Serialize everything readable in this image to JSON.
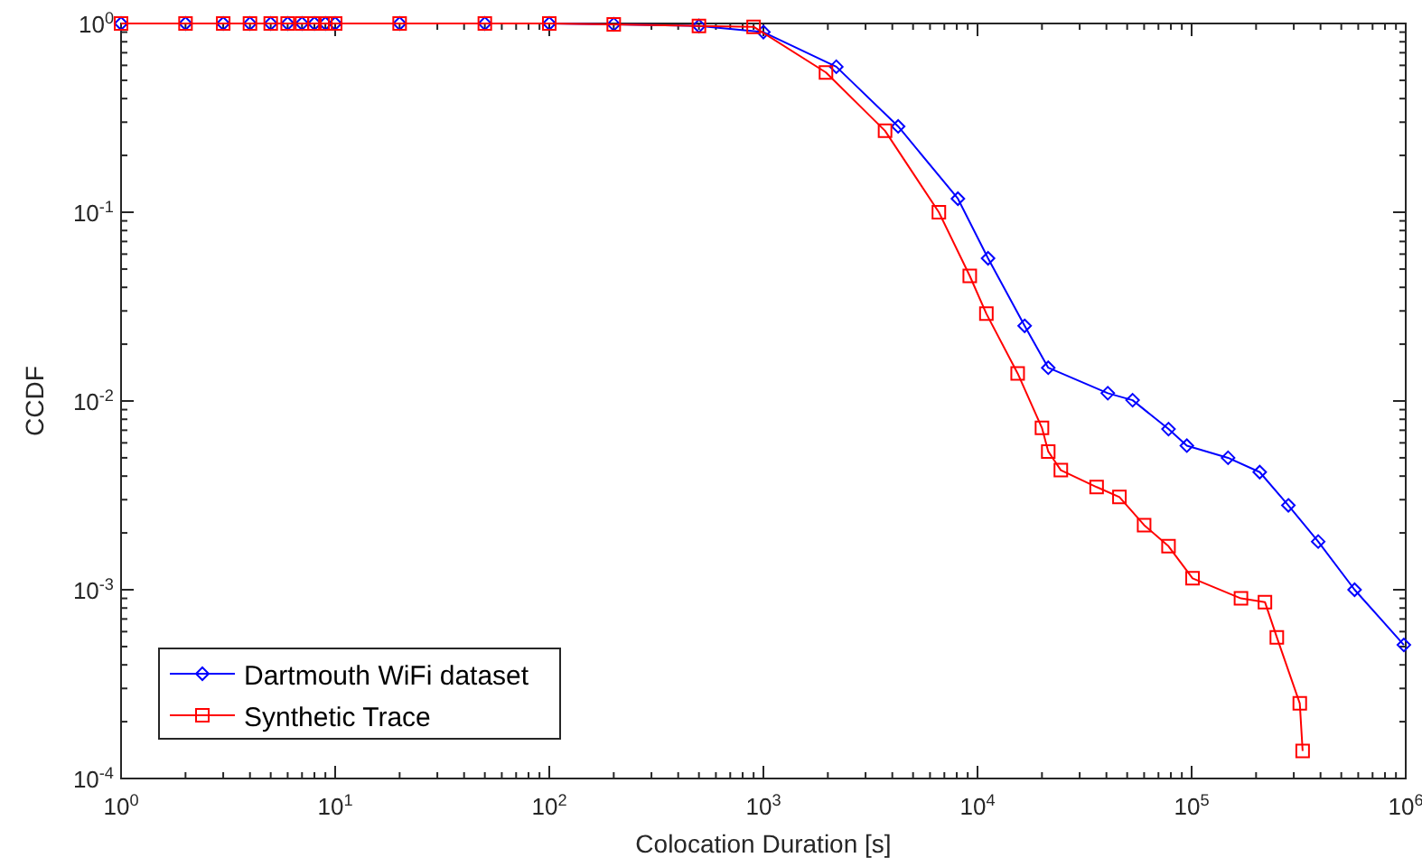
{
  "chart_data": {
    "type": "line",
    "xlabel": "Colocation Duration [s]",
    "ylabel": "CCDF",
    "log": "xy",
    "grid": false,
    "legend": "bottom left",
    "line_style": "solid",
    "xlim": [
      1,
      1000000
    ],
    "ylim": [
      0.0001,
      1
    ],
    "xticks": [
      {
        "value": 1,
        "label": "10$^{0}$"
      },
      {
        "value": 2,
        "label": null
      },
      {
        "value": 3,
        "label": null
      },
      {
        "value": 4,
        "label": null
      },
      {
        "value": 5,
        "label": null
      },
      {
        "value": 6,
        "label": null
      },
      {
        "value": 7,
        "label": null
      },
      {
        "value": 8,
        "label": null
      },
      {
        "value": 9,
        "label": null
      },
      {
        "value": 10,
        "label": "10$^{1}$"
      },
      {
        "value": 20,
        "label": null
      },
      {
        "value": 30,
        "label": null
      },
      {
        "value": 40,
        "label": null
      },
      {
        "value": 50,
        "label": null
      },
      {
        "value": 60,
        "label": null
      },
      {
        "value": 70,
        "label": null
      },
      {
        "value": 80,
        "label": null
      },
      {
        "value": 90,
        "label": null
      },
      {
        "value": 100,
        "label": "10$^{2}$"
      },
      {
        "value": 200,
        "label": null
      },
      {
        "value": 300,
        "label": null
      },
      {
        "value": 400,
        "label": null
      },
      {
        "value": 500,
        "label": null
      },
      {
        "value": 600,
        "label": null
      },
      {
        "value": 700,
        "label": null
      },
      {
        "value": 800,
        "label": null
      },
      {
        "value": 900,
        "label": null
      },
      {
        "value": 1000,
        "label": "10$^{3}$"
      },
      {
        "value": 2000,
        "label": null
      },
      {
        "value": 3000,
        "label": null
      },
      {
        "value": 4000,
        "label": null
      },
      {
        "value": 5000,
        "label": null
      },
      {
        "value": 6000,
        "label": null
      },
      {
        "value": 7000,
        "label": null
      },
      {
        "value": 8000,
        "label": null
      },
      {
        "value": 9000,
        "label": null
      },
      {
        "value": 10000,
        "label": "10$^{4}$"
      },
      {
        "value": 20000,
        "label": null
      },
      {
        "value": 30000,
        "label": null
      },
      {
        "value": 40000,
        "label": null
      },
      {
        "value": 50000,
        "label": null
      },
      {
        "value": 60000,
        "label": null
      },
      {
        "value": 70000,
        "label": null
      },
      {
        "value": 80000,
        "label": null
      },
      {
        "value": 90000,
        "label": null
      },
      {
        "value": 100000,
        "label": "10$^{5}$"
      },
      {
        "value": 200000,
        "label": null
      },
      {
        "value": 300000,
        "label": null
      },
      {
        "value": 400000,
        "label": null
      },
      {
        "value": 500000,
        "label": null
      },
      {
        "value": 600000,
        "label": null
      },
      {
        "value": 700000,
        "label": null
      },
      {
        "value": 800000,
        "label": null
      },
      {
        "value": 900000,
        "label": null
      },
      {
        "value": 1000000,
        "label": "10$^{6}$"
      }
    ],
    "yticks": [
      {
        "value": 0.0001,
        "label": "10$^{-4}$"
      },
      {
        "value": 0.0002,
        "label": null
      },
      {
        "value": 0.0003,
        "label": null
      },
      {
        "value": 0.0004,
        "label": null
      },
      {
        "value": 0.0005,
        "label": null
      },
      {
        "value": 0.0006,
        "label": null
      },
      {
        "value": 0.0007,
        "label": null
      },
      {
        "value": 0.0008,
        "label": null
      },
      {
        "value": 0.0009,
        "label": null
      },
      {
        "value": 0.001,
        "label": "10$^{-3}$"
      },
      {
        "value": 0.002,
        "label": null
      },
      {
        "value": 0.003,
        "label": null
      },
      {
        "value": 0.004,
        "label": null
      },
      {
        "value": 0.005,
        "label": null
      },
      {
        "value": 0.006,
        "label": null
      },
      {
        "value": 0.007,
        "label": null
      },
      {
        "value": 0.008,
        "label": null
      },
      {
        "value": 0.009,
        "label": null
      },
      {
        "value": 0.01,
        "label": "10$^{-2}$"
      },
      {
        "value": 0.02,
        "label": null
      },
      {
        "value": 0.03,
        "label": null
      },
      {
        "value": 0.04,
        "label": null
      },
      {
        "value": 0.05,
        "label": null
      },
      {
        "value": 0.06,
        "label": null
      },
      {
        "value": 0.07,
        "label": null
      },
      {
        "value": 0.08,
        "label": null
      },
      {
        "value": 0.09,
        "label": null
      },
      {
        "value": 0.1,
        "label": "10$^{-1}$"
      },
      {
        "value": 0.2,
        "label": null
      },
      {
        "value": 0.3,
        "label": null
      },
      {
        "value": 0.4,
        "label": null
      },
      {
        "value": 0.5,
        "label": null
      },
      {
        "value": 0.6,
        "label": null
      },
      {
        "value": 0.7,
        "label": null
      },
      {
        "value": 0.8,
        "label": null
      },
      {
        "value": 0.9,
        "label": null
      },
      {
        "value": 1,
        "label": "10$^{0}$"
      }
    ],
    "series": [
      {
        "name": "Dartmouth WiFi dataset",
        "color": "#0000ff",
        "marker": "diamond",
        "x": [
          1,
          2,
          3,
          4,
          5,
          6,
          7,
          8,
          9,
          10,
          20,
          50,
          100,
          200,
          500,
          1000,
          2190,
          4260,
          8100,
          11200,
          16600,
          21400,
          40600,
          53000,
          78000,
          95000,
          148000,
          208000,
          283000,
          390000,
          577000,
          980000
        ],
        "values": [
          1,
          1,
          1,
          1,
          1,
          1,
          1,
          1,
          1,
          1,
          1,
          1,
          1,
          0.99,
          0.97,
          0.9,
          0.59,
          0.285,
          0.118,
          0.057,
          0.025,
          0.015,
          0.011,
          0.0101,
          0.0071,
          0.0058,
          0.005,
          0.0042,
          0.0028,
          0.0018,
          0.001,
          0.00051
        ]
      },
      {
        "name": "Synthetic Trace",
        "color": "#ff0000",
        "marker": "square",
        "x": [
          1,
          2,
          3,
          4,
          5,
          6,
          7,
          8,
          9,
          10,
          20,
          50,
          100,
          200,
          500,
          900,
          1960,
          3700,
          6600,
          9200,
          11000,
          15400,
          20000,
          21400,
          24500,
          36000,
          46000,
          60000,
          78000,
          101000,
          170000,
          220000,
          250000,
          320000,
          330000
        ],
        "values": [
          1,
          1,
          1,
          1,
          1,
          1,
          1,
          1,
          1,
          1,
          1,
          1,
          1,
          0.99,
          0.97,
          0.96,
          0.55,
          0.27,
          0.1,
          0.046,
          0.029,
          0.014,
          0.0072,
          0.0054,
          0.0043,
          0.0035,
          0.0031,
          0.0022,
          0.0017,
          0.00115,
          0.0009,
          0.00086,
          0.00056,
          0.00025,
          0.00014
        ]
      }
    ]
  }
}
